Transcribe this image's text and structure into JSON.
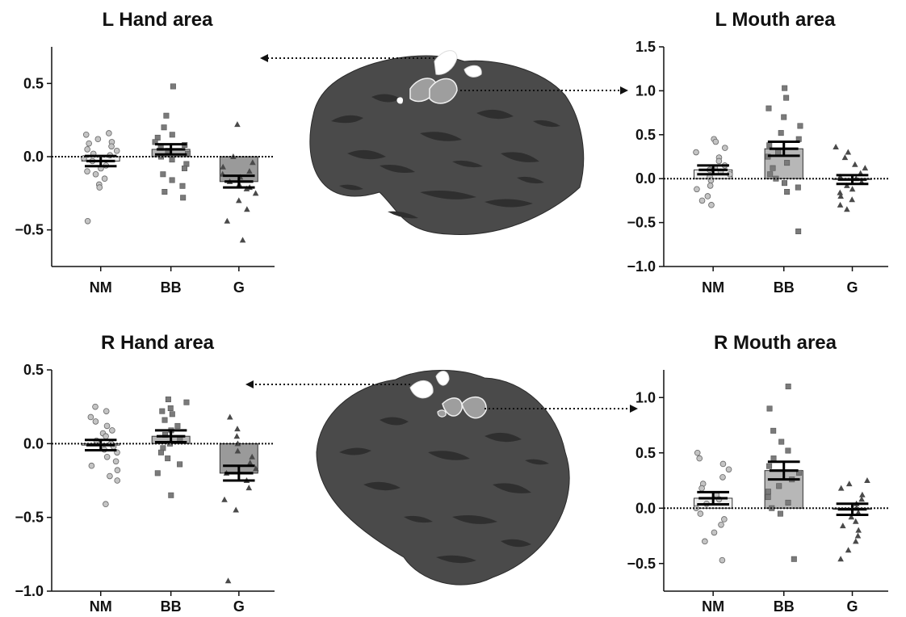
{
  "colors": {
    "nm_bar": "#eeeeee",
    "bb_bar": "#b7b7b7",
    "g_bar": "#9a9a9a",
    "nm_marker": "#c4c4c4",
    "bb_marker": "#7a7a7a",
    "g_marker": "#4a4a4a",
    "brain": "#4a4a4a",
    "brain_pattern": "#303030",
    "roi_white": "#ffffff",
    "roi_gray": "#9e9e9e"
  },
  "brain_images": [
    {
      "name": "left-hemisphere",
      "hand_roi": "white",
      "mouth_roi": "gray"
    },
    {
      "name": "right-hemisphere",
      "hand_roi": "white",
      "mouth_roi": "gray"
    }
  ],
  "chart_data": [
    {
      "id": "l-hand",
      "type": "bar",
      "title": "L Hand area",
      "categories": [
        "NM",
        "BB",
        "G"
      ],
      "markers": [
        "circle",
        "square",
        "triangle"
      ],
      "ylim": [
        -0.75,
        0.75
      ],
      "yticks": [
        "0.5",
        "0.0",
        "−0.5"
      ],
      "ytick_values": [
        0.5,
        0.0,
        -0.5
      ],
      "means": [
        -0.03,
        0.05,
        -0.17
      ],
      "sem": [
        0.035,
        0.035,
        0.04
      ],
      "points": [
        [
          0.16,
          0.15,
          0.12,
          0.1,
          0.09,
          0.07,
          0.05,
          0.04,
          0.02,
          0.01,
          -0.01,
          -0.03,
          -0.06,
          -0.08,
          -0.1,
          -0.12,
          -0.15,
          -0.19,
          -0.21,
          -0.44
        ],
        [
          0.48,
          0.28,
          0.2,
          0.15,
          0.13,
          0.1,
          0.08,
          0.06,
          0.04,
          0.02,
          0.0,
          -0.02,
          -0.05,
          -0.08,
          -0.12,
          -0.16,
          -0.2,
          -0.24,
          -0.28
        ],
        [
          0.22,
          0.0,
          -0.04,
          -0.07,
          -0.1,
          -0.12,
          -0.14,
          -0.17,
          -0.19,
          -0.21,
          -0.22,
          -0.25,
          -0.3,
          -0.36,
          -0.44,
          -0.57
        ]
      ]
    },
    {
      "id": "l-mouth",
      "type": "bar",
      "title": "L Mouth area",
      "categories": [
        "NM",
        "BB",
        "G"
      ],
      "markers": [
        "circle",
        "square",
        "triangle"
      ],
      "ylim": [
        -1.0,
        1.5
      ],
      "yticks": [
        "1.5",
        "1.0",
        "0.5",
        "0.0",
        "−0.5",
        "−1.0"
      ],
      "ytick_values": [
        1.5,
        1.0,
        0.5,
        0.0,
        -0.5,
        -1.0
      ],
      "means": [
        0.1,
        0.34,
        -0.01
      ],
      "sem": [
        0.05,
        0.08,
        0.05
      ],
      "points": [
        [
          0.45,
          0.42,
          0.35,
          0.3,
          0.24,
          0.2,
          0.15,
          0.12,
          0.1,
          0.08,
          0.05,
          0.02,
          -0.02,
          -0.08,
          -0.12,
          -0.2,
          -0.25,
          -0.3
        ],
        [
          1.03,
          0.92,
          0.8,
          0.7,
          0.6,
          0.52,
          0.45,
          0.38,
          0.3,
          0.25,
          0.18,
          0.12,
          0.05,
          0.0,
          -0.05,
          -0.1,
          -0.15,
          -0.6
        ],
        [
          0.36,
          0.3,
          0.24,
          0.16,
          0.12,
          0.06,
          0.02,
          0.0,
          -0.04,
          -0.08,
          -0.12,
          -0.16,
          -0.2,
          -0.24,
          -0.3,
          -0.35
        ]
      ]
    },
    {
      "id": "r-hand",
      "type": "bar",
      "title": "R Hand area",
      "categories": [
        "NM",
        "BB",
        "G"
      ],
      "markers": [
        "circle",
        "square",
        "triangle"
      ],
      "ylim": [
        -1.0,
        0.5
      ],
      "yticks": [
        "0.5",
        "0.0",
        "−0.5",
        "−1.0"
      ],
      "ytick_values": [
        0.5,
        0.0,
        -0.5,
        -1.0
      ],
      "means": [
        -0.01,
        0.05,
        -0.2
      ],
      "sem": [
        0.035,
        0.04,
        0.05
      ],
      "points": [
        [
          0.25,
          0.22,
          0.18,
          0.15,
          0.12,
          0.09,
          0.07,
          0.05,
          0.02,
          0.0,
          -0.02,
          -0.04,
          -0.06,
          -0.09,
          -0.12,
          -0.15,
          -0.18,
          -0.22,
          -0.25,
          -0.41
        ],
        [
          0.3,
          0.28,
          0.24,
          0.22,
          0.2,
          0.16,
          0.12,
          0.09,
          0.06,
          0.03,
          0.0,
          -0.03,
          -0.06,
          -0.1,
          -0.14,
          -0.2,
          -0.35
        ],
        [
          0.18,
          0.1,
          0.05,
          0.0,
          -0.05,
          -0.09,
          -0.13,
          -0.17,
          -0.2,
          -0.25,
          -0.3,
          -0.38,
          -0.45,
          -0.93
        ]
      ]
    },
    {
      "id": "r-mouth",
      "type": "bar",
      "title": "R Mouth area",
      "categories": [
        "NM",
        "BB",
        "G"
      ],
      "markers": [
        "circle",
        "square",
        "triangle"
      ],
      "ylim": [
        -0.75,
        1.25
      ],
      "yticks": [
        "1.0",
        "0.5",
        "0.0",
        "−0.5"
      ],
      "ytick_values": [
        1.0,
        0.5,
        0.0,
        -0.5
      ],
      "means": [
        0.09,
        0.34,
        -0.01
      ],
      "sem": [
        0.055,
        0.08,
        0.05
      ],
      "points": [
        [
          0.5,
          0.45,
          0.4,
          0.35,
          0.28,
          0.22,
          0.18,
          0.12,
          0.08,
          0.04,
          0.0,
          -0.05,
          -0.1,
          -0.15,
          -0.22,
          -0.3,
          -0.47
        ],
        [
          1.1,
          0.9,
          0.7,
          0.6,
          0.52,
          0.45,
          0.38,
          0.32,
          0.26,
          0.2,
          0.15,
          0.1,
          0.05,
          0.0,
          -0.05,
          -0.46
        ],
        [
          0.25,
          0.22,
          0.18,
          0.12,
          0.08,
          0.04,
          0.0,
          -0.04,
          -0.08,
          -0.12,
          -0.16,
          -0.2,
          -0.25,
          -0.3,
          -0.38,
          -0.46
        ]
      ]
    }
  ]
}
